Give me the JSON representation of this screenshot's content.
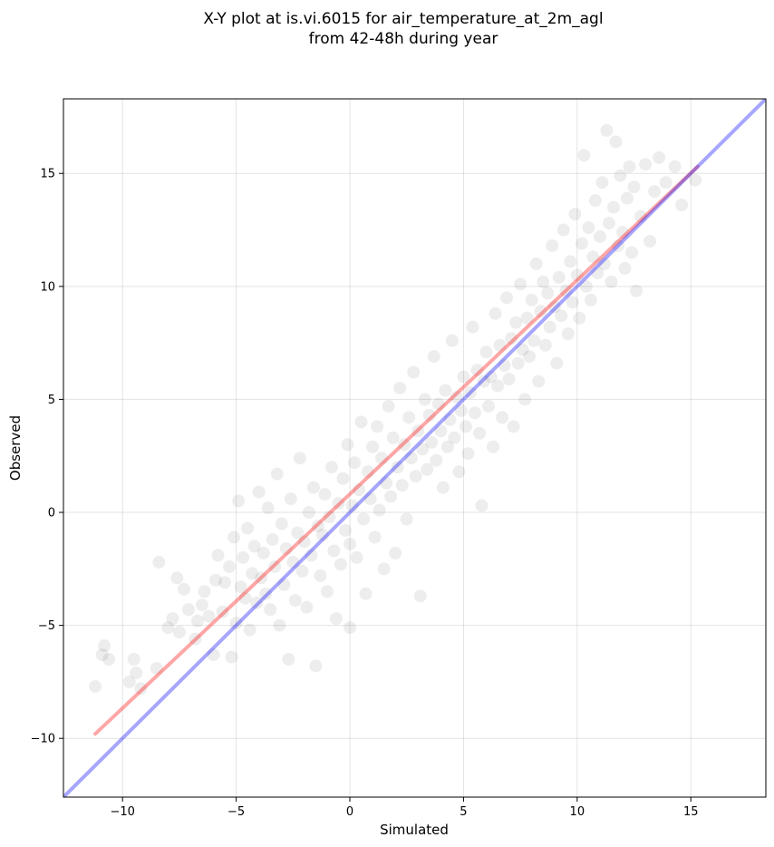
{
  "chart_data": {
    "type": "scatter",
    "title_lines": [
      "X-Y plot at is.vi.6015 for air_temperature_at_2m_agl",
      "from 42-48h during year"
    ],
    "xlabel": "Simulated",
    "ylabel": "Observed",
    "xlim": [
      -12.6,
      18.3
    ],
    "ylim": [
      -12.6,
      18.3
    ],
    "xticks": [
      -10,
      -5,
      0,
      5,
      10,
      15
    ],
    "yticks": [
      -10,
      -5,
      0,
      5,
      10,
      15
    ],
    "xtick_labels": [
      "−10",
      "−5",
      "0",
      "5",
      "10",
      "15"
    ],
    "ytick_labels": [
      "−10",
      "−5",
      "0",
      "5",
      "10",
      "15"
    ],
    "grid": true,
    "point_color": "#000000",
    "point_alpha": 0.07,
    "one_to_one_line": {
      "x": [
        -12.6,
        18.3
      ],
      "y": [
        -12.6,
        18.3
      ],
      "color": "#0000ff",
      "alpha": 0.35
    },
    "fit_line": {
      "x": [
        -11.2,
        15.3
      ],
      "y": [
        -9.8,
        15.3
      ],
      "color": "#ff0000",
      "alpha": 0.35
    },
    "points": [
      [
        -11.2,
        -7.7
      ],
      [
        -10.9,
        -6.3
      ],
      [
        -10.6,
        -6.5
      ],
      [
        -10.8,
        -5.9
      ],
      [
        -9.7,
        -7.5
      ],
      [
        -9.5,
        -6.5
      ],
      [
        -9.2,
        -7.8
      ],
      [
        -9.4,
        -7.1
      ],
      [
        -8.5,
        -6.9
      ],
      [
        -8.4,
        -2.2
      ],
      [
        -8.0,
        -5.1
      ],
      [
        -7.6,
        -2.9
      ],
      [
        -7.8,
        -4.7
      ],
      [
        -7.5,
        -5.3
      ],
      [
        -7.3,
        -3.4
      ],
      [
        -7.1,
        -4.3
      ],
      [
        -6.8,
        -5.6
      ],
      [
        -6.7,
        -4.8
      ],
      [
        -6.5,
        -4.1
      ],
      [
        -6.4,
        -3.5
      ],
      [
        -6.2,
        -4.6
      ],
      [
        -6.0,
        -6.3
      ],
      [
        -5.9,
        -3.0
      ],
      [
        -5.8,
        -1.9
      ],
      [
        -5.6,
        -4.4
      ],
      [
        -5.5,
        -3.1
      ],
      [
        -5.3,
        -2.4
      ],
      [
        -5.2,
        -6.4
      ],
      [
        -5.1,
        -1.1
      ],
      [
        -5.0,
        -4.9
      ],
      [
        -4.9,
        0.5
      ],
      [
        -4.8,
        -3.3
      ],
      [
        -4.7,
        -2.0
      ],
      [
        -4.6,
        -3.8
      ],
      [
        -4.5,
        -0.7
      ],
      [
        -4.4,
        -5.2
      ],
      [
        -4.3,
        -2.7
      ],
      [
        -4.2,
        -1.5
      ],
      [
        -4.1,
        -4.0
      ],
      [
        -4.0,
        0.9
      ],
      [
        -3.9,
        -2.9
      ],
      [
        -3.8,
        -1.8
      ],
      [
        -3.7,
        -3.6
      ],
      [
        -3.6,
        0.2
      ],
      [
        -3.5,
        -4.3
      ],
      [
        -3.4,
        -1.2
      ],
      [
        -3.3,
        -2.4
      ],
      [
        -3.2,
        1.7
      ],
      [
        -3.1,
        -5.0
      ],
      [
        -3.0,
        -0.5
      ],
      [
        -2.9,
        -3.2
      ],
      [
        -2.8,
        -1.6
      ],
      [
        -2.7,
        -6.5
      ],
      [
        -2.6,
        0.6
      ],
      [
        -2.5,
        -2.2
      ],
      [
        -2.4,
        -3.9
      ],
      [
        -2.3,
        -0.9
      ],
      [
        -2.2,
        2.4
      ],
      [
        -2.1,
        -2.6
      ],
      [
        -2.0,
        -1.3
      ],
      [
        -1.9,
        -4.2
      ],
      [
        -1.8,
        0.0
      ],
      [
        -1.7,
        -1.9
      ],
      [
        -1.6,
        1.1
      ],
      [
        -1.5,
        -6.8
      ],
      [
        -1.4,
        -0.6
      ],
      [
        -1.3,
        -2.8
      ],
      [
        -1.2,
        -1.0
      ],
      [
        -1.1,
        0.8
      ],
      [
        -1.0,
        -3.5
      ],
      [
        -0.9,
        -0.2
      ],
      [
        -0.8,
        2.0
      ],
      [
        -0.7,
        -1.7
      ],
      [
        -0.6,
        -4.7
      ],
      [
        -0.5,
        0.4
      ],
      [
        -0.4,
        -2.3
      ],
      [
        -0.3,
        1.5
      ],
      [
        -0.2,
        -0.8
      ],
      [
        -0.1,
        3.0
      ],
      [
        0.0,
        -5.1
      ],
      [
        0.0,
        -1.4
      ],
      [
        0.1,
        0.3
      ],
      [
        0.2,
        2.2
      ],
      [
        0.3,
        -2.0
      ],
      [
        0.4,
        1.0
      ],
      [
        0.5,
        4.0
      ],
      [
        0.6,
        -0.3
      ],
      [
        0.7,
        -3.6
      ],
      [
        0.8,
        1.8
      ],
      [
        0.9,
        0.6
      ],
      [
        1.0,
        2.9
      ],
      [
        1.1,
        -1.1
      ],
      [
        1.2,
        3.8
      ],
      [
        1.3,
        0.1
      ],
      [
        1.4,
        2.4
      ],
      [
        1.5,
        -2.5
      ],
      [
        1.6,
        1.3
      ],
      [
        1.7,
        4.7
      ],
      [
        1.8,
        0.7
      ],
      [
        1.9,
        3.3
      ],
      [
        2.0,
        -1.8
      ],
      [
        2.1,
        2.0
      ],
      [
        2.2,
        5.5
      ],
      [
        2.3,
        1.2
      ],
      [
        2.4,
        3.0
      ],
      [
        2.5,
        -0.3
      ],
      [
        2.6,
        4.2
      ],
      [
        2.7,
        2.4
      ],
      [
        2.8,
        6.2
      ],
      [
        2.9,
        1.6
      ],
      [
        3.0,
        3.6
      ],
      [
        3.1,
        -3.7
      ],
      [
        3.2,
        2.8
      ],
      [
        3.3,
        5.0
      ],
      [
        3.4,
        1.9
      ],
      [
        3.5,
        4.3
      ],
      [
        3.6,
        3.1
      ],
      [
        3.7,
        6.9
      ],
      [
        3.8,
        2.3
      ],
      [
        3.9,
        4.8
      ],
      [
        4.0,
        3.6
      ],
      [
        4.1,
        1.1
      ],
      [
        4.2,
        5.4
      ],
      [
        4.3,
        2.9
      ],
      [
        4.4,
        4.1
      ],
      [
        4.5,
        7.6
      ],
      [
        4.6,
        3.3
      ],
      [
        4.7,
        5.1
      ],
      [
        4.8,
        1.8
      ],
      [
        4.9,
        4.5
      ],
      [
        5.0,
        6.0
      ],
      [
        5.1,
        3.8
      ],
      [
        5.2,
        2.6
      ],
      [
        5.3,
        5.3
      ],
      [
        5.4,
        8.2
      ],
      [
        5.5,
        4.4
      ],
      [
        5.6,
        6.3
      ],
      [
        5.7,
        3.5
      ],
      [
        5.8,
        0.3
      ],
      [
        5.9,
        5.8
      ],
      [
        6.0,
        7.1
      ],
      [
        6.1,
        4.7
      ],
      [
        6.2,
        6.0
      ],
      [
        6.3,
        2.9
      ],
      [
        6.4,
        8.8
      ],
      [
        6.5,
        5.6
      ],
      [
        6.6,
        7.4
      ],
      [
        6.7,
        4.2
      ],
      [
        6.8,
        6.5
      ],
      [
        6.9,
        9.5
      ],
      [
        7.0,
        5.9
      ],
      [
        7.1,
        7.7
      ],
      [
        7.2,
        3.8
      ],
      [
        7.3,
        8.4
      ],
      [
        7.4,
        6.6
      ],
      [
        7.5,
        10.1
      ],
      [
        7.6,
        7.2
      ],
      [
        7.7,
        5.0
      ],
      [
        7.8,
        8.6
      ],
      [
        7.9,
        6.9
      ],
      [
        8.0,
        9.4
      ],
      [
        8.1,
        7.6
      ],
      [
        8.2,
        11.0
      ],
      [
        8.3,
        5.8
      ],
      [
        8.4,
        8.9
      ],
      [
        8.5,
        10.2
      ],
      [
        8.6,
        7.4
      ],
      [
        8.7,
        9.7
      ],
      [
        8.8,
        8.2
      ],
      [
        8.9,
        11.8
      ],
      [
        9.0,
        9.1
      ],
      [
        9.1,
        6.6
      ],
      [
        9.2,
        10.4
      ],
      [
        9.3,
        8.7
      ],
      [
        9.4,
        12.5
      ],
      [
        9.5,
        9.8
      ],
      [
        9.6,
        7.9
      ],
      [
        9.7,
        11.1
      ],
      [
        9.8,
        9.3
      ],
      [
        9.9,
        13.2
      ],
      [
        10.0,
        10.5
      ],
      [
        10.1,
        8.6
      ],
      [
        10.2,
        11.9
      ],
      [
        10.3,
        15.8
      ],
      [
        10.4,
        10.0
      ],
      [
        10.5,
        12.6
      ],
      [
        10.6,
        9.4
      ],
      [
        10.7,
        11.3
      ],
      [
        10.8,
        13.8
      ],
      [
        10.9,
        10.6
      ],
      [
        11.0,
        12.2
      ],
      [
        11.1,
        14.6
      ],
      [
        11.2,
        11.0
      ],
      [
        11.3,
        16.9
      ],
      [
        11.4,
        12.8
      ],
      [
        11.5,
        10.2
      ],
      [
        11.6,
        13.5
      ],
      [
        11.7,
        16.4
      ],
      [
        11.8,
        11.8
      ],
      [
        11.9,
        14.9
      ],
      [
        12.0,
        12.4
      ],
      [
        12.1,
        10.8
      ],
      [
        12.2,
        13.9
      ],
      [
        12.3,
        15.3
      ],
      [
        12.4,
        11.5
      ],
      [
        12.5,
        14.4
      ],
      [
        12.6,
        9.8
      ],
      [
        12.8,
        13.1
      ],
      [
        13.0,
        15.4
      ],
      [
        13.2,
        12.0
      ],
      [
        13.4,
        14.2
      ],
      [
        13.6,
        15.7
      ],
      [
        13.9,
        14.6
      ],
      [
        14.3,
        15.3
      ],
      [
        14.6,
        13.6
      ],
      [
        15.2,
        14.7
      ]
    ]
  }
}
